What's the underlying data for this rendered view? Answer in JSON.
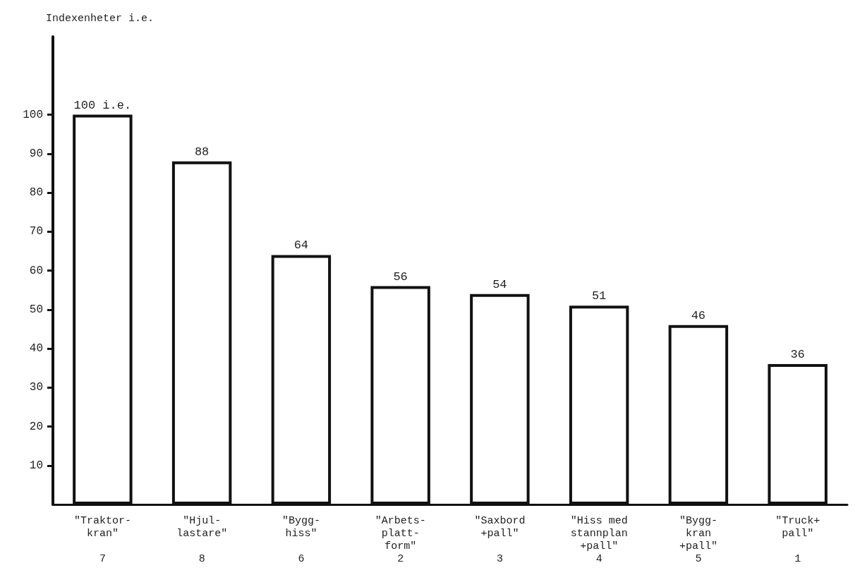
{
  "chart_data": {
    "type": "bar",
    "ylabel": "Indexenheter i.e.",
    "categories": [
      "\"Traktor-\nkran\"\n\n7",
      "\"Hjul-\nlastare\"\n\n8",
      "\"Bygg-\nhiss\"\n\n6",
      "\"Arbets-\nplatt-\nform\"\n2",
      "\"Saxbord\n+pall\"\n\n3",
      "\"Hiss med\nstannplan\n+pall\"\n4",
      "\"Bygg-\nkran\n+pall\"\n5",
      "\"Truck+\npall\"\n\n1"
    ],
    "values": [
      100,
      88,
      64,
      56,
      54,
      51,
      46,
      36
    ],
    "value_labels": [
      "100 i.e.",
      "88",
      "64",
      "56",
      "54",
      "51",
      "46",
      "36"
    ],
    "color": "#ffffff",
    "ylim": [
      0,
      120
    ],
    "yticks": [
      10,
      20,
      30,
      40,
      50,
      60,
      70,
      80,
      90,
      100
    ],
    "grid": false
  }
}
